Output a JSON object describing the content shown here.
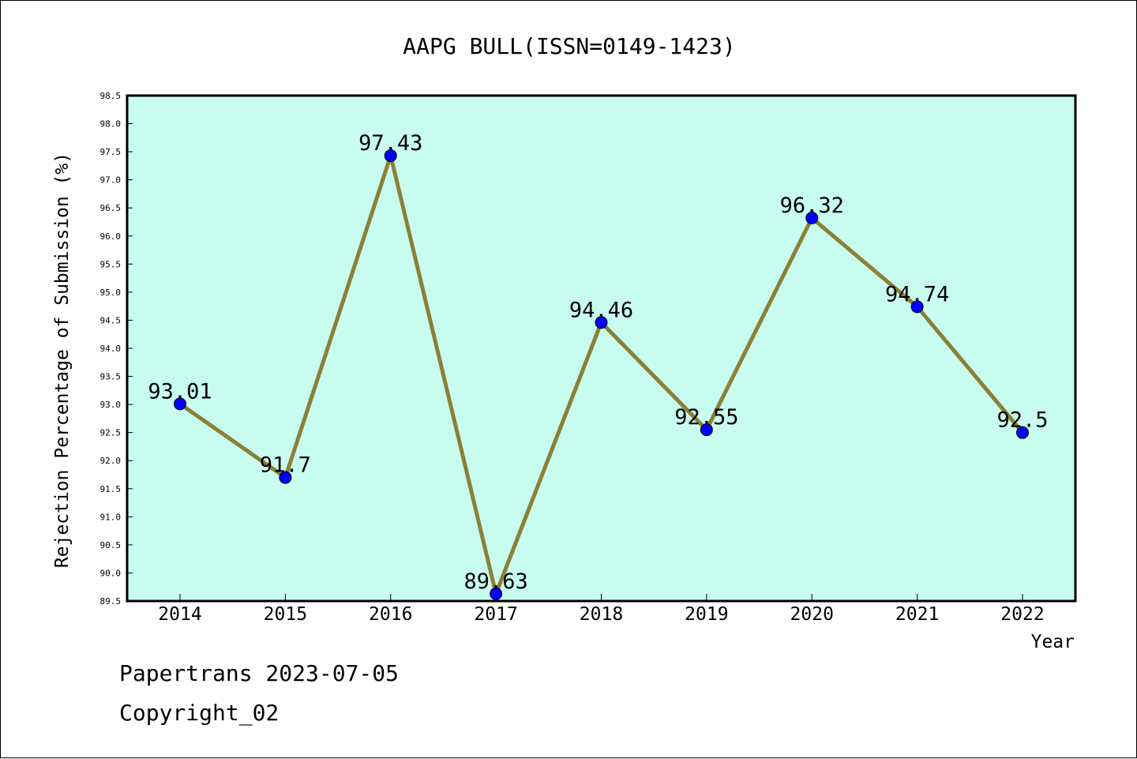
{
  "chart_data": {
    "type": "line",
    "title": "AAPG BULL(ISSN=0149-1423)",
    "xlabel": "Year",
    "ylabel": "Rejection Percentage of Submission (%)",
    "categories": [
      "2014",
      "2015",
      "2016",
      "2017",
      "2018",
      "2019",
      "2020",
      "2021",
      "2022"
    ],
    "series": [
      {
        "values": [
          93.01,
          91.7,
          97.43,
          89.63,
          94.46,
          92.55,
          96.32,
          94.74,
          92.5
        ],
        "labels": [
          "93.01",
          "91.7",
          "97.43",
          "89.63",
          "94.46",
          "92.55",
          "96.32",
          "94.74",
          "92.5"
        ],
        "line_color": "#8b8038",
        "marker_color": "#0000ff"
      }
    ],
    "ylim": [
      89.5,
      98.5
    ],
    "yticks": [
      "89.5",
      "90.0",
      "90.5",
      "91.0",
      "91.5",
      "92.0",
      "92.5",
      "93.0",
      "93.5",
      "94.0",
      "94.5",
      "95.0",
      "95.5",
      "96.0",
      "96.5",
      "97.0",
      "97.5",
      "98.0",
      "98.5"
    ],
    "plot_background": "#c8fcee",
    "grid": false,
    "legend": "none"
  },
  "footer": {
    "line1": "Papertrans 2023-07-05",
    "line2": "Copyright_02"
  }
}
